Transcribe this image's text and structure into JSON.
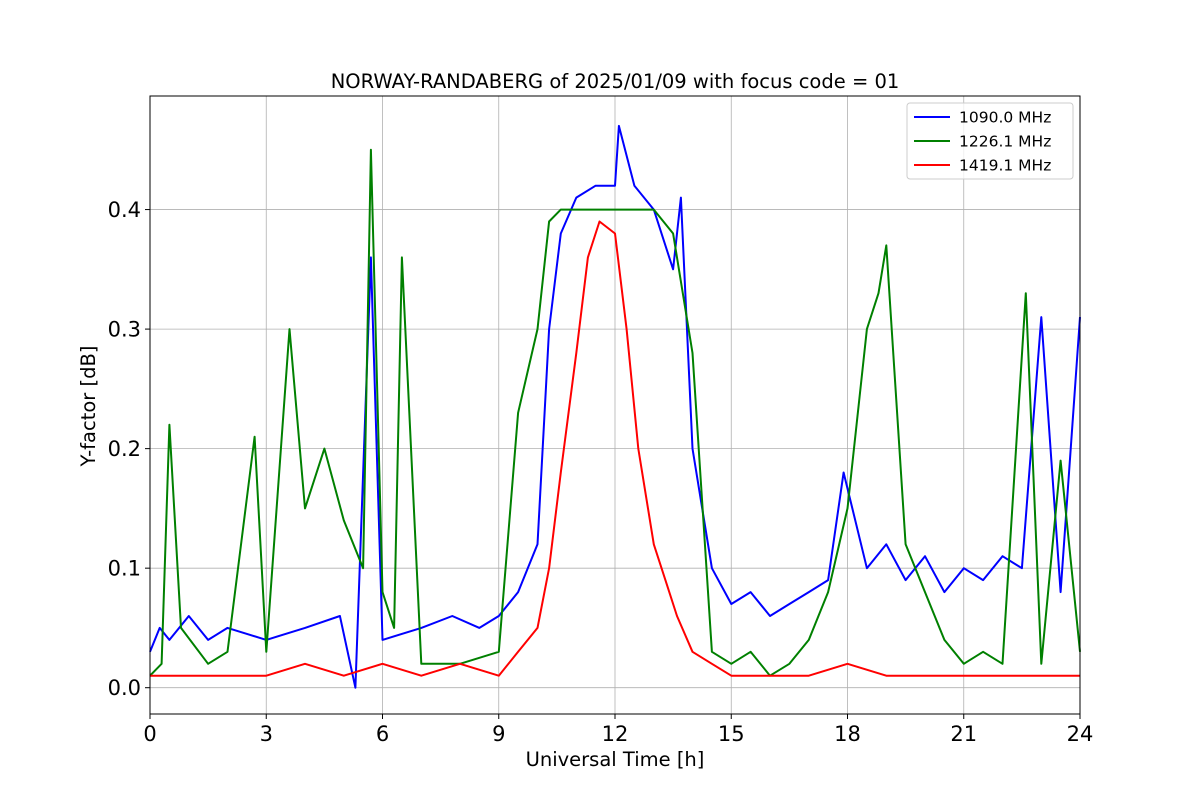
{
  "chart_data": {
    "type": "line",
    "title": "NORWAY-RANDABERG of 2025/01/09 with focus code = 01",
    "xlabel": "Universal Time [h]",
    "ylabel": "Y-factor [dB]",
    "xlim": [
      0,
      24
    ],
    "ylim": [
      -0.022,
      0.495
    ],
    "xticks": [
      0,
      3,
      6,
      9,
      12,
      15,
      18,
      21,
      24
    ],
    "yticks": [
      0.0,
      0.1,
      0.2,
      0.3,
      0.4
    ],
    "xtick_labels": [
      "0",
      "3",
      "6",
      "9",
      "12",
      "15",
      "18",
      "21",
      "24"
    ],
    "ytick_labels": [
      "0.0",
      "0.1",
      "0.2",
      "0.3",
      "0.4"
    ],
    "grid": true,
    "legend": {
      "position": "top-right"
    },
    "series": [
      {
        "name": "1090.0 MHz",
        "color": "#0000ff",
        "x": [
          0.0,
          0.25,
          0.5,
          1.0,
          1.5,
          2.0,
          3.0,
          4.0,
          4.9,
          5.3,
          5.7,
          6.0,
          7.0,
          7.8,
          8.5,
          9.0,
          9.5,
          10.0,
          10.3,
          10.6,
          11.0,
          11.5,
          12.0,
          12.1,
          12.5,
          13.0,
          13.5,
          13.7,
          14.0,
          14.5,
          15.0,
          15.5,
          16.0,
          16.5,
          17.0,
          17.5,
          17.9,
          18.5,
          19.0,
          19.5,
          20.0,
          20.5,
          21.0,
          21.5,
          22.0,
          22.5,
          23.0,
          23.5,
          24.0
        ],
        "values": [
          0.03,
          0.05,
          0.04,
          0.06,
          0.04,
          0.05,
          0.04,
          0.05,
          0.06,
          0.0,
          0.36,
          0.04,
          0.05,
          0.06,
          0.05,
          0.06,
          0.08,
          0.12,
          0.3,
          0.38,
          0.41,
          0.42,
          0.42,
          0.47,
          0.42,
          0.4,
          0.35,
          0.41,
          0.2,
          0.1,
          0.07,
          0.08,
          0.06,
          0.07,
          0.08,
          0.09,
          0.18,
          0.1,
          0.12,
          0.09,
          0.11,
          0.08,
          0.1,
          0.09,
          0.11,
          0.1,
          0.31,
          0.08,
          0.31
        ]
      },
      {
        "name": "1226.1 MHz",
        "color": "#008000",
        "x": [
          0.0,
          0.3,
          0.5,
          0.8,
          1.5,
          2.0,
          2.7,
          3.0,
          3.6,
          4.0,
          4.5,
          5.0,
          5.5,
          5.7,
          6.0,
          6.3,
          6.5,
          7.0,
          8.0,
          9.0,
          9.5,
          10.0,
          10.3,
          10.6,
          11.0,
          11.5,
          12.0,
          12.5,
          13.0,
          13.5,
          14.0,
          14.5,
          15.0,
          15.5,
          16.0,
          16.5,
          17.0,
          17.5,
          18.0,
          18.5,
          18.8,
          19.0,
          19.5,
          20.0,
          20.5,
          21.0,
          21.5,
          22.0,
          22.6,
          23.0,
          23.5,
          24.0
        ],
        "values": [
          0.01,
          0.02,
          0.22,
          0.05,
          0.02,
          0.03,
          0.21,
          0.03,
          0.3,
          0.15,
          0.2,
          0.14,
          0.1,
          0.45,
          0.08,
          0.05,
          0.36,
          0.02,
          0.02,
          0.03,
          0.23,
          0.3,
          0.39,
          0.4,
          0.4,
          0.4,
          0.4,
          0.4,
          0.4,
          0.38,
          0.28,
          0.03,
          0.02,
          0.03,
          0.01,
          0.02,
          0.04,
          0.08,
          0.15,
          0.3,
          0.33,
          0.37,
          0.12,
          0.08,
          0.04,
          0.02,
          0.03,
          0.02,
          0.33,
          0.02,
          0.19,
          0.03
        ]
      },
      {
        "name": "1419.1 MHz",
        "color": "#ff0000",
        "x": [
          0.0,
          1.0,
          2.0,
          3.0,
          4.0,
          5.0,
          6.0,
          7.0,
          8.0,
          9.0,
          9.5,
          10.0,
          10.3,
          10.6,
          11.0,
          11.3,
          11.6,
          12.0,
          12.3,
          12.6,
          13.0,
          13.3,
          13.6,
          14.0,
          14.5,
          15.0,
          16.0,
          17.0,
          18.0,
          19.0,
          20.0,
          21.0,
          22.0,
          23.0,
          24.0
        ],
        "values": [
          0.01,
          0.01,
          0.01,
          0.01,
          0.02,
          0.01,
          0.02,
          0.01,
          0.02,
          0.01,
          0.03,
          0.05,
          0.1,
          0.18,
          0.28,
          0.36,
          0.39,
          0.38,
          0.3,
          0.2,
          0.12,
          0.09,
          0.06,
          0.03,
          0.02,
          0.01,
          0.01,
          0.01,
          0.02,
          0.01,
          0.01,
          0.01,
          0.01,
          0.01,
          0.01
        ]
      }
    ]
  }
}
